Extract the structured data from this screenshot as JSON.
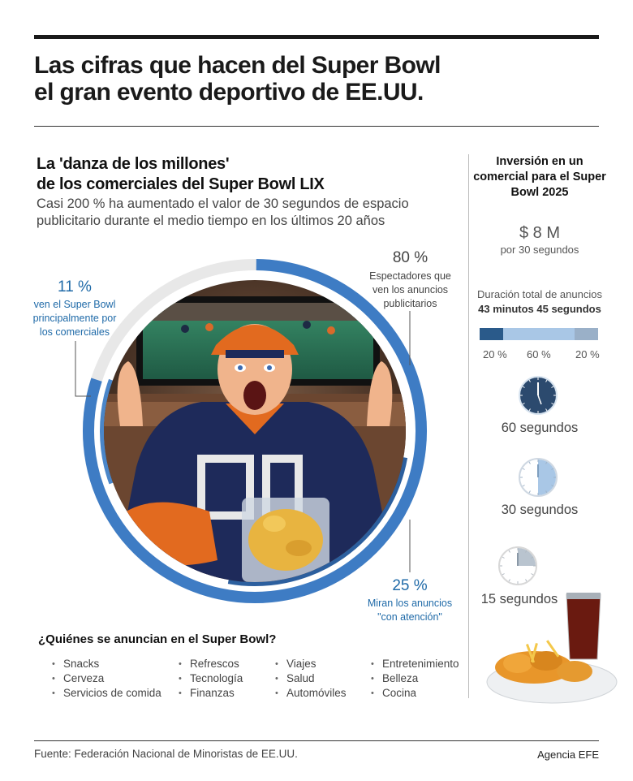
{
  "title_line1": "Las cifras que hacen del Super Bowl",
  "title_line2": "el gran evento deportivo de EE.UU.",
  "subtitle_line1": "La 'danza de los millones'",
  "subtitle_line2": "de los comerciales del Super Bowl LIX",
  "description": "Casi 200 % ha aumentado el valor de 30 segundos de espacio publicitario durante el medio tiempo en los últimos 20 años",
  "chart_data": {
    "type": "pie",
    "title": "La 'danza de los millones' de los comerciales del Super Bowl LIX",
    "series": [
      {
        "name": "Espectadores que ven los anuncios publicitarios",
        "value": 80,
        "ring": "outer",
        "color": "#3e7cc4"
      },
      {
        "name": "Miran los anuncios \"con atención\"",
        "value": 25,
        "ring": "outer",
        "color": "#2c5f9e"
      },
      {
        "name": "Ven el Super Bowl principalmente por los comerciales",
        "value": 11,
        "ring": "outer",
        "color": "#4a86c9"
      }
    ],
    "track_color": "#e8e8e8"
  },
  "annotations": {
    "a80": {
      "num": "80 %",
      "text": "Espectadores que ven los anuncios publicitarios"
    },
    "a11": {
      "num": "11 %",
      "text": "ven el Super Bowl principalmente por los comerciales"
    },
    "a25": {
      "num": "25 %",
      "text": "Miran los anuncios \"con atención\""
    }
  },
  "who": {
    "title": "¿Quiénes se anuncian en el Super Bowl?",
    "col1": [
      "Snacks",
      "Cerveza",
      "Servicios de comida"
    ],
    "col2": [
      "Refrescos",
      "Tecnología",
      "Finanzas"
    ],
    "col3": [
      "Viajes",
      "Salud",
      "Automóviles"
    ],
    "col4": [
      "Entretenimiento",
      "Belleza",
      "Cocina"
    ]
  },
  "side": {
    "title": "Inversión en un comercial para el Super Bowl 2025",
    "price": "$ 8 M",
    "per": "por 30 segundos",
    "duration_label": "Duración total de anuncios",
    "duration_value": "43 minutos 45 segundos",
    "segments": [
      {
        "label": "20 %",
        "value": 20,
        "color": "#2a5a8a"
      },
      {
        "label": "60 %",
        "value": 60,
        "color": "#a9c7e6"
      },
      {
        "label": "20 %",
        "value": 20,
        "color": "#9ab0c8"
      }
    ],
    "clocks": [
      {
        "label": "60 segundos",
        "seconds": 60
      },
      {
        "label": "30 segundos",
        "seconds": 30
      },
      {
        "label": "15 segundos",
        "seconds": 15
      }
    ]
  },
  "source": "Fuente: Federación Nacional de Minoristas de EE.UU.",
  "agency": "Agencia EFE"
}
